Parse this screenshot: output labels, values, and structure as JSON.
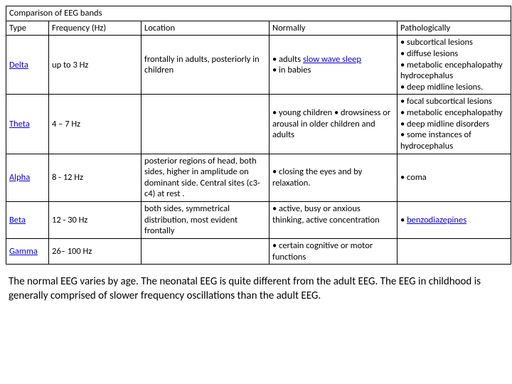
{
  "table": {
    "title": "Comparison of EEG bands",
    "headers": {
      "type": "Type",
      "frequency": "Frequency (Hz)",
      "location": "Location",
      "normally": "Normally",
      "pathologically": "Pathologically"
    },
    "rows": [
      {
        "type": "Delta",
        "type_link": true,
        "frequency": "up to 3 Hz",
        "location": "frontally in adults, posteriorly in children",
        "normally_pre": "• adults ",
        "normally_link": "slow wave sleep",
        "normally_post": "\n• in babies",
        "pathologically": "• subcortical lesions\n• diffuse lesions\n• metabolic encephalopathy hydrocephalus\n• deep midline lesions."
      },
      {
        "type": "Theta",
        "type_link": true,
        "frequency": "4 – 7 Hz",
        "location": "",
        "normally": "• young children\n• drowsiness or arousal in older children and adults",
        "pathologically": "• focal subcortical lesions\n• metabolic encephalopathy\n• deep midline disorders\n• some instances of hydrocephalus"
      },
      {
        "type": "Alpha",
        "type_link": true,
        "frequency": "8 - 12 Hz",
        "location": "posterior regions of head, both sides, higher in amplitude on dominant side. Central sites (c3-c4) at rest .",
        "normally": "• closing the eyes and by relaxation.",
        "pathologically": "• coma"
      },
      {
        "type": "Beta",
        "type_link": true,
        "frequency": "12 - 30 Hz",
        "location": "both sides, symmetrical distribution, most evident frontally",
        "normally": "• active, busy or anxious thinking, active concentration",
        "pathologically_link": "benzodiazepines",
        "pathologically_pre": "• "
      },
      {
        "type": "Gamma",
        "type_link": true,
        "frequency": "26– 100 Hz",
        "location": "",
        "normally": "• certain cognitive or motor functions",
        "pathologically": ""
      }
    ]
  },
  "paragraph": "The normal EEG varies by age. The neonatal EEG is quite different from the adult EEG. The EEG in childhood is generally comprised of slower frequency oscillations than the adult EEG."
}
